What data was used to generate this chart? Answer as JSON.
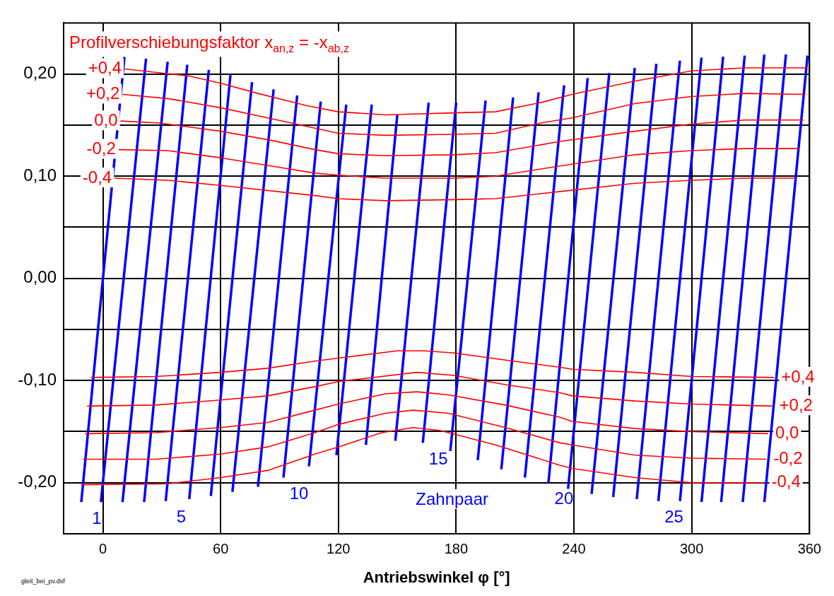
{
  "chart_data": {
    "type": "line",
    "title": "Profilverschiebungsfaktor x$_{an,z}$ = -x$_{ab,z}$",
    "xlabel": "Antriebswinkel φ [°]",
    "annotations": [
      "Zahnpaar",
      "gleit_bei_pv.dsf"
    ],
    "xlim": [
      -20,
      360
    ],
    "xticks": [
      0,
      60,
      120,
      180,
      240,
      300,
      360
    ],
    "ylim": [
      -0.25,
      0.25
    ],
    "yticks": [
      {
        "value": -0.2,
        "label": "-0,20"
      },
      {
        "value": -0.15,
        "label": null
      },
      {
        "value": -0.1,
        "label": "-0,10"
      },
      {
        "value": -0.05,
        "label": null
      },
      {
        "value": 0,
        "label": "0,00"
      },
      {
        "value": 0.05,
        "label": null
      },
      {
        "value": 0.1,
        "label": "0,10"
      },
      {
        "value": 0.15,
        "label": null
      },
      {
        "value": 0.2,
        "label": "0,20"
      }
    ],
    "grid": true,
    "legend": false,
    "marker": "none",
    "line_style": "solid",
    "series": [
      {
        "name": "+0,4",
        "color": "#ff0000",
        "x": [
          11,
          44,
          60,
          79,
          104,
          120,
          144,
          179,
          200,
          223,
          239,
          271,
          300,
          327,
          359
        ],
        "values": [
          0.205,
          0.198,
          0.191,
          0.181,
          0.169,
          0.163,
          0.16,
          0.162,
          0.163,
          0.172,
          0.18,
          0.193,
          0.203,
          0.206,
          0.206
        ]
      },
      {
        "name": "+0,2",
        "color": "#ff0000",
        "x": [
          10,
          33,
          60,
          89,
          108,
          120,
          144,
          179,
          200,
          223,
          239,
          271,
          300,
          327,
          358
        ],
        "values": [
          0.18,
          0.176,
          0.167,
          0.155,
          0.147,
          0.142,
          0.14,
          0.141,
          0.142,
          0.152,
          0.157,
          0.171,
          0.178,
          0.181,
          0.18
        ]
      },
      {
        "name": "0,0",
        "color": "#ff0000",
        "x": [
          9,
          29,
          60,
          86,
          108,
          120,
          144,
          179,
          200,
          233,
          271,
          300,
          327,
          357
        ],
        "values": [
          0.154,
          0.152,
          0.144,
          0.135,
          0.126,
          0.122,
          0.12,
          0.121,
          0.123,
          0.134,
          0.144,
          0.151,
          0.155,
          0.155
        ]
      },
      {
        "name": "-0,2",
        "color": "#ff0000",
        "x": [
          8,
          33,
          60,
          89,
          108,
          120,
          144,
          179,
          200,
          233,
          271,
          300,
          327,
          355
        ],
        "values": [
          0.126,
          0.125,
          0.118,
          0.109,
          0.103,
          0.101,
          0.098,
          0.098,
          0.1,
          0.11,
          0.121,
          0.125,
          0.127,
          0.127
        ]
      },
      {
        "name": "-0,4",
        "color": "#ff0000",
        "x": [
          6,
          33,
          60,
          108,
          120,
          144,
          179,
          200,
          233,
          271,
          300,
          327,
          353
        ],
        "values": [
          0.098,
          0.096,
          0.091,
          0.081,
          0.078,
          0.076,
          0.077,
          0.078,
          0.085,
          0.093,
          0.096,
          0.098,
          0.098
        ]
      },
      {
        "name": "+0,4",
        "color": "#ff0000",
        "x": [
          -6,
          27,
          60,
          84,
          108,
          120,
          150,
          164,
          179,
          205,
          233,
          239,
          271,
          300,
          342
        ],
        "values": [
          -0.097,
          -0.096,
          -0.092,
          -0.088,
          -0.081,
          -0.078,
          -0.071,
          -0.071,
          -0.073,
          -0.08,
          -0.087,
          -0.089,
          -0.092,
          -0.096,
          -0.097
        ]
      },
      {
        "name": "+0,2",
        "color": "#ff0000",
        "x": [
          -8,
          27,
          60,
          84,
          108,
          120,
          160,
          179,
          205,
          233,
          239,
          271,
          300,
          341
        ],
        "values": [
          -0.125,
          -0.124,
          -0.119,
          -0.115,
          -0.106,
          -0.101,
          -0.092,
          -0.095,
          -0.104,
          -0.112,
          -0.115,
          -0.12,
          -0.123,
          -0.125
        ]
      },
      {
        "name": "0,0",
        "color": "#ff0000",
        "x": [
          -9,
          27,
          60,
          84,
          108,
          120,
          144,
          160,
          176,
          205,
          233,
          239,
          271,
          300,
          339
        ],
        "values": [
          -0.152,
          -0.151,
          -0.146,
          -0.141,
          -0.129,
          -0.123,
          -0.113,
          -0.111,
          -0.114,
          -0.124,
          -0.136,
          -0.14,
          -0.147,
          -0.15,
          -0.152
        ]
      },
      {
        "name": "-0,2",
        "color": "#ff0000",
        "x": [
          -10,
          27,
          60,
          84,
          108,
          120,
          144,
          158,
          176,
          205,
          233,
          239,
          271,
          300,
          338
        ],
        "values": [
          -0.177,
          -0.177,
          -0.172,
          -0.165,
          -0.151,
          -0.143,
          -0.132,
          -0.129,
          -0.132,
          -0.146,
          -0.161,
          -0.163,
          -0.173,
          -0.176,
          -0.177
        ]
      },
      {
        "name": "-0,4",
        "color": "#ff0000",
        "x": [
          -11,
          33,
          60,
          84,
          108,
          120,
          142,
          158,
          172,
          200,
          233,
          239,
          271,
          300,
          337
        ],
        "values": [
          -0.202,
          -0.201,
          -0.195,
          -0.188,
          -0.172,
          -0.165,
          -0.151,
          -0.146,
          -0.149,
          -0.163,
          -0.183,
          -0.186,
          -0.195,
          -0.2,
          -0.2
        ]
      },
      {
        "name": "1",
        "color": "#0000ff",
        "x": [
          -11,
          11
        ],
        "values": [
          -0.219,
          0.217
        ]
      },
      {
        "color": "#0000ff",
        "x": [
          -1,
          22
        ],
        "values": [
          -0.219,
          0.215
        ]
      },
      {
        "color": "#0000ff",
        "x": [
          10,
          33
        ],
        "values": [
          -0.219,
          0.212
        ]
      },
      {
        "color": "#0000ff",
        "x": [
          21,
          43
        ],
        "values": [
          -0.219,
          0.209
        ]
      },
      {
        "name": "5",
        "color": "#0000ff",
        "x": [
          32,
          54
        ],
        "values": [
          -0.218,
          0.204
        ]
      },
      {
        "color": "#0000ff",
        "x": [
          44,
          65
        ],
        "values": [
          -0.216,
          0.199
        ]
      },
      {
        "color": "#0000ff",
        "x": [
          55,
          76
        ],
        "values": [
          -0.213,
          0.192
        ]
      },
      {
        "color": "#0000ff",
        "x": [
          66,
          87
        ],
        "values": [
          -0.209,
          0.185
        ]
      },
      {
        "color": "#0000ff",
        "x": [
          79,
          99
        ],
        "values": [
          -0.204,
          0.179
        ]
      },
      {
        "name": "10",
        "color": "#0000ff",
        "x": [
          92,
          111
        ],
        "values": [
          -0.195,
          0.173
        ]
      },
      {
        "color": "#0000ff",
        "x": [
          105,
          124
        ],
        "values": [
          -0.184,
          0.17
        ]
      },
      {
        "color": "#0000ff",
        "x": [
          119,
          137
        ],
        "values": [
          -0.173,
          0.17
        ]
      },
      {
        "color": "#0000ff",
        "x": [
          134,
          150
        ],
        "values": [
          -0.163,
          0.16
        ]
      },
      {
        "color": "#0000ff",
        "x": [
          149,
          166
        ],
        "values": [
          -0.159,
          0.172
        ]
      },
      {
        "name": "15",
        "color": "#0000ff",
        "x": [
          163,
          180
        ],
        "values": [
          -0.161,
          0.172
        ]
      },
      {
        "color": "#0000ff",
        "x": [
          177,
          195
        ],
        "values": [
          -0.169,
          0.174
        ]
      },
      {
        "color": "#0000ff",
        "x": [
          191,
          209
        ],
        "values": [
          -0.178,
          0.177
        ]
      },
      {
        "color": "#0000ff",
        "x": [
          203,
          222
        ],
        "values": [
          -0.187,
          0.182
        ]
      },
      {
        "color": "#0000ff",
        "x": [
          215,
          235
        ],
        "values": [
          -0.195,
          0.189
        ]
      },
      {
        "name": "20",
        "color": "#0000ff",
        "x": [
          227,
          247
        ],
        "values": [
          -0.2,
          0.196
        ]
      },
      {
        "color": "#0000ff",
        "x": [
          237,
          258
        ],
        "values": [
          -0.206,
          0.201
        ]
      },
      {
        "color": "#0000ff",
        "x": [
          249,
          271
        ],
        "values": [
          -0.211,
          0.206
        ]
      },
      {
        "color": "#0000ff",
        "x": [
          260,
          282
        ],
        "values": [
          -0.214,
          0.21
        ]
      },
      {
        "color": "#0000ff",
        "x": [
          272,
          294
        ],
        "values": [
          -0.216,
          0.213
        ]
      },
      {
        "name": "25",
        "color": "#0000ff",
        "x": [
          283,
          305
        ],
        "values": [
          -0.218,
          0.216
        ]
      },
      {
        "color": "#0000ff",
        "x": [
          294,
          316
        ],
        "values": [
          -0.218,
          0.217
        ]
      },
      {
        "color": "#0000ff",
        "x": [
          305,
          327
        ],
        "values": [
          -0.219,
          0.218
        ]
      },
      {
        "color": "#0000ff",
        "x": [
          315,
          337
        ],
        "values": [
          -0.219,
          0.219
        ]
      },
      {
        "color": "#0000ff",
        "x": [
          326,
          348
        ],
        "values": [
          -0.219,
          0.219
        ]
      },
      {
        "color": "#0000ff",
        "x": [
          337,
          359
        ],
        "values": [
          -0.219,
          0.218
        ]
      }
    ]
  }
}
